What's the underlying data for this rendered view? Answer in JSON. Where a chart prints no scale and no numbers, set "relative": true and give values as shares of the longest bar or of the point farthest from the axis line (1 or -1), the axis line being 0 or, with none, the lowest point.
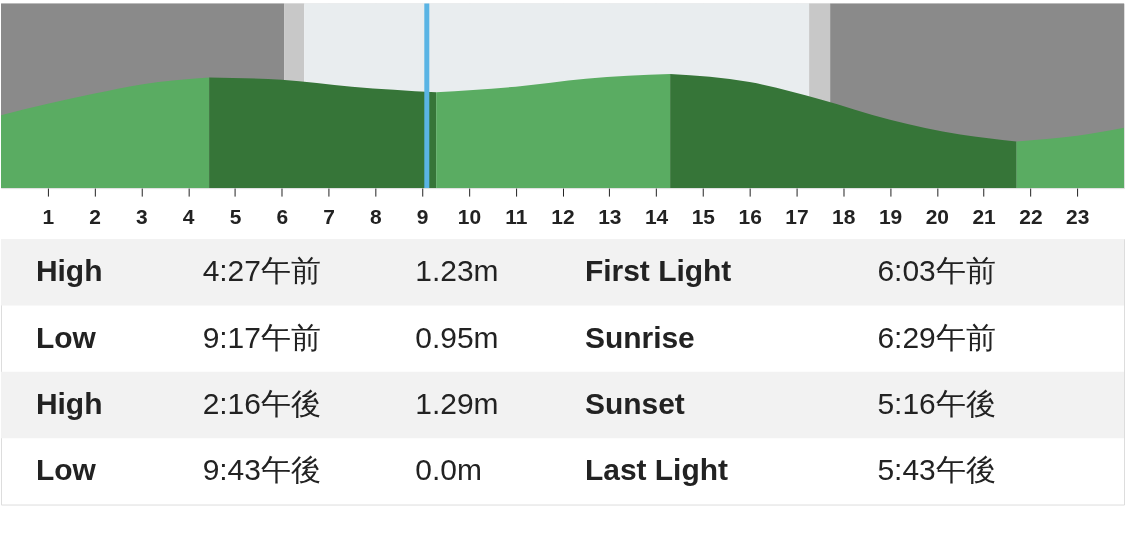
{
  "chart_data": {
    "type": "area",
    "relative": true,
    "xlim": [
      0,
      24
    ],
    "xticks": [
      1,
      2,
      3,
      4,
      5,
      6,
      7,
      8,
      9,
      10,
      11,
      12,
      13,
      14,
      15,
      16,
      17,
      18,
      19,
      20,
      21,
      22,
      23
    ],
    "grid": "x",
    "series": [
      {
        "color": "#5aac62",
        "x": [
          0,
          1,
          2,
          3,
          4.45
        ],
        "values": [
          0.64,
          0.74,
          0.83,
          0.91,
          0.97
        ]
      },
      {
        "color": "#367538",
        "x": [
          4.45,
          6,
          7.5,
          9.3
        ],
        "values": [
          0.97,
          0.95,
          0.89,
          0.84
        ]
      },
      {
        "color": "#5aac62",
        "x": [
          9.3,
          11,
          12.5,
          14.3
        ],
        "values": [
          0.84,
          0.89,
          0.96,
          1.0
        ]
      },
      {
        "color": "#367538",
        "x": [
          14.3,
          16,
          17.5,
          19,
          20.5,
          21.7
        ],
        "values": [
          1.0,
          0.93,
          0.78,
          0.6,
          0.47,
          0.41
        ]
      },
      {
        "color": "#5aac62",
        "x": [
          21.7,
          23,
          24
        ],
        "values": [
          0.41,
          0.46,
          0.53
        ]
      }
    ],
    "bands": [
      {
        "axis": "x",
        "from": 0,
        "to": 6.05,
        "color": "#8a8a8a"
      },
      {
        "axis": "x",
        "from": 6.05,
        "to": 6.48,
        "color": "#c8c8c8"
      },
      {
        "axis": "x",
        "from": 6.48,
        "to": 17.27,
        "color": "#e9edef"
      },
      {
        "axis": "x",
        "from": 17.27,
        "to": 17.72,
        "color": "#c8c8c8"
      },
      {
        "axis": "x",
        "from": 17.72,
        "to": 24,
        "color": "#8a8a8a"
      }
    ],
    "ref_lines": [
      {
        "axis": "x",
        "value": 9.1,
        "color": "#5ab4e4"
      }
    ],
    "annotations": [
      "High",
      "4:27午前",
      "1.23m",
      "First Light",
      "6:03午前",
      "Low",
      "9:17午前",
      "0.95m",
      "Sunrise",
      "6:29午前",
      "High",
      "2:16午後",
      "1.29m",
      "Sunset",
      "5:16午後",
      "Low",
      "9:43午後",
      "0.0m",
      "Last Light",
      "5:43午後"
    ]
  }
}
